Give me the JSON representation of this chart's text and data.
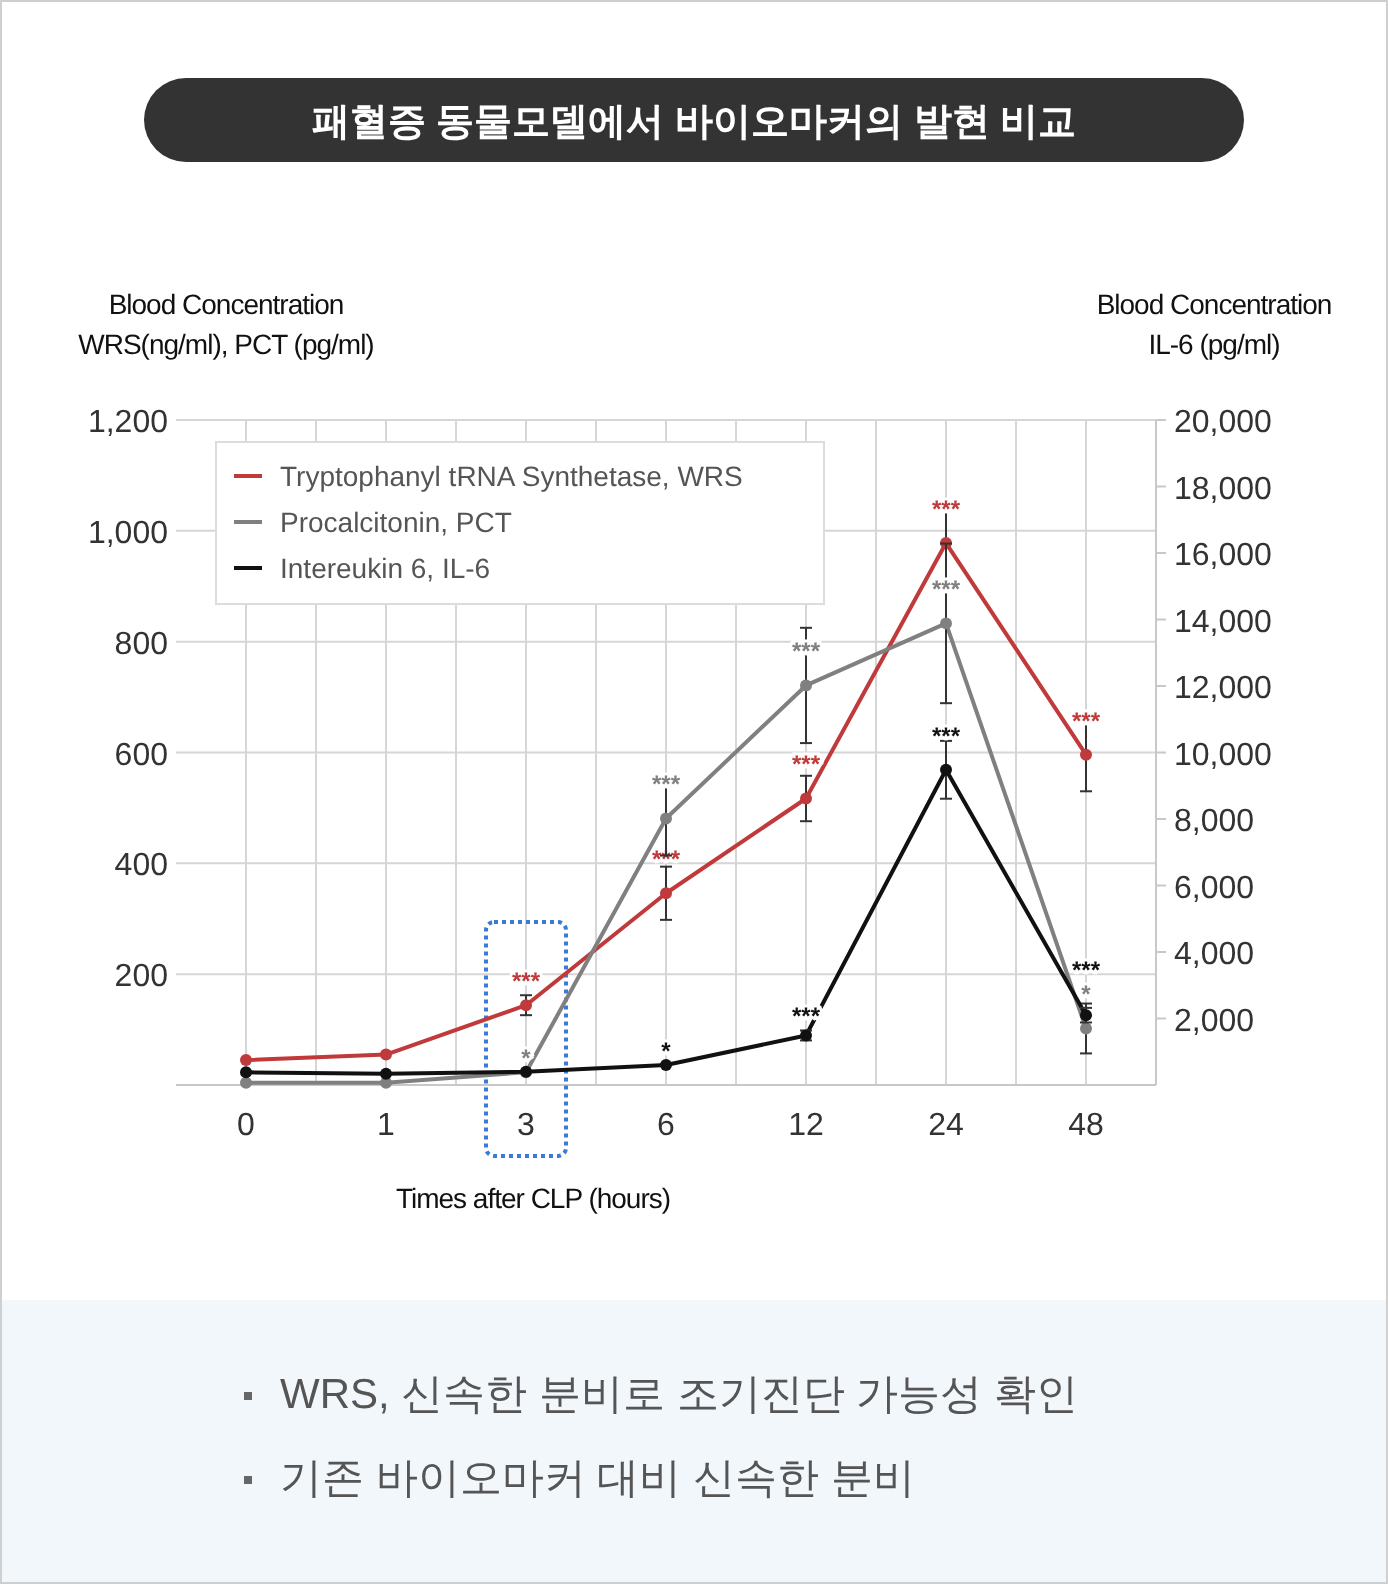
{
  "chart_data": {
    "type": "line",
    "title": "패혈증 동물모델에서 바이오마커의 발현 비교",
    "xlabel": "Times after CLP (hours)",
    "ylabel": "Blood Concentration\nWRS(ng/ml), PCT (pg/ml)",
    "y2label": "Blood Concentration\nIL-6 (pg/ml)",
    "categories": [
      "0",
      "1",
      "3",
      "6",
      "12",
      "24",
      "48"
    ],
    "ylim": [
      0,
      1200
    ],
    "yticks": [
      {
        "value": 0,
        "label": null
      },
      200,
      400,
      600,
      800,
      {
        "value": 1000,
        "label": "1,000"
      },
      {
        "value": 1200,
        "label": "1,200"
      }
    ],
    "y2lim": [
      0,
      20000
    ],
    "y2ticks": [
      {
        "value": 2000,
        "label": "2,000"
      },
      {
        "value": 4000,
        "label": "4,000"
      },
      {
        "value": 6000,
        "label": "6,000"
      },
      {
        "value": 8000,
        "label": "8,000"
      },
      {
        "value": 10000,
        "label": "10,000"
      },
      {
        "value": 12000,
        "label": "12,000"
      },
      {
        "value": 14000,
        "label": "14,000"
      },
      {
        "value": 16000,
        "label": "16,000"
      },
      {
        "value": 18000,
        "label": "18,000"
      },
      {
        "value": 20000,
        "label": "20,000"
      }
    ],
    "grid": true,
    "legend": "top left",
    "marker": "circle",
    "line_style": "solid",
    "series": [
      {
        "name": "Tryptophanyl tRNA Synthetase, WRS",
        "color": "#c0393b",
        "values": [
          45,
          55,
          144,
          346,
          517,
          978,
          596
        ],
        "errors": [
          null,
          null,
          18,
          48,
          41,
          75,
          66
        ],
        "value_labels": [
          null,
          null,
          "***",
          "***",
          "***",
          "***",
          "***"
        ]
      },
      {
        "name": "Procalcitonin, PCT",
        "color": "#808080",
        "values": [
          4,
          4,
          23,
          481,
          721,
          833,
          102
        ],
        "errors": [
          null,
          null,
          null,
          67,
          104,
          144,
          45
        ],
        "value_labels": [
          null,
          null,
          "*",
          "***",
          "***",
          "***",
          "*"
        ]
      },
      {
        "name": "Intereukin 6, IL-6",
        "color": "#111111",
        "axis": "y2",
        "values": [
          380,
          340,
          400,
          600,
          1490,
          9480,
          2100
        ],
        "errors": [
          null,
          null,
          null,
          null,
          150,
          870,
          220
        ],
        "value_labels": [
          null,
          null,
          null,
          "*",
          "***",
          "***",
          "***"
        ]
      }
    ],
    "annotations": [
      "WRS, 신속한 분비로 조기진단 가능성 확인",
      "기존 바이오마커 대비 신속한 분비"
    ]
  }
}
